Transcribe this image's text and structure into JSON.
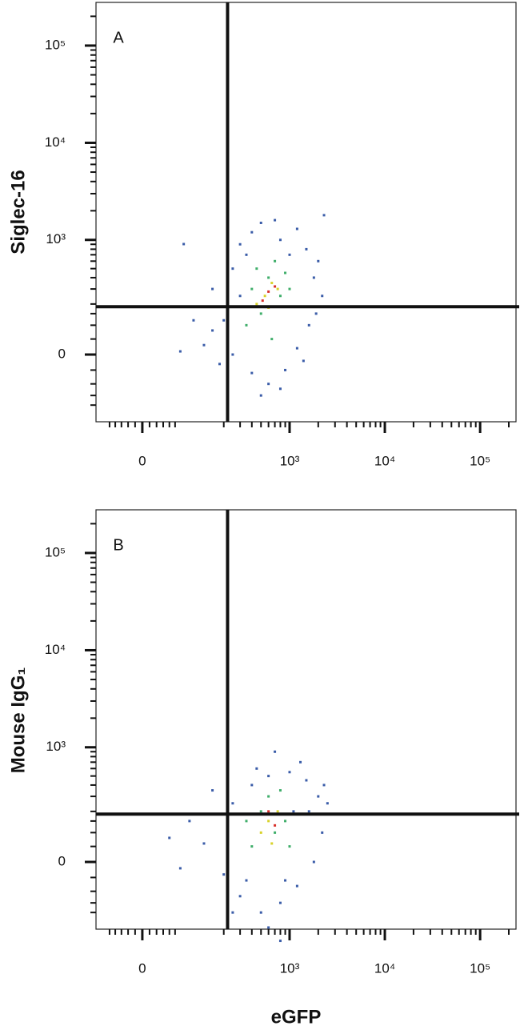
{
  "chart_data": [
    {
      "type": "scatter",
      "label": "A",
      "ylabel": "Siglec-16",
      "xlim": [
        -78,
        238000
      ],
      "ylim": [
        -313,
        278000
      ],
      "xticks": [
        0,
        {
          "value": 1000,
          "label": "10³"
        },
        {
          "value": 10000,
          "label": "10⁴"
        },
        {
          "value": 100000,
          "label": "10⁵"
        }
      ],
      "yticks": [
        0,
        {
          "value": 1000,
          "label": "10³"
        },
        {
          "value": 10000,
          "label": "10⁴"
        },
        {
          "value": 100000,
          "label": "10⁵"
        }
      ],
      "minor_xticks": [
        -50,
        -40,
        -30,
        -20,
        -10,
        10,
        20,
        30,
        40,
        50,
        200,
        300,
        400,
        500,
        600,
        700,
        800,
        900,
        2000,
        3000,
        4000,
        5000,
        6000,
        7000,
        8000,
        9000,
        20000,
        30000,
        40000,
        50000,
        60000,
        70000,
        80000,
        90000,
        200000
      ],
      "minor_yticks": [
        -200,
        -150,
        -100,
        -50,
        50,
        100,
        150,
        200,
        300,
        400,
        500,
        600,
        700,
        800,
        900,
        2000,
        3000,
        4000,
        5000,
        6000,
        7000,
        8000,
        9000,
        20000,
        30000,
        40000,
        50000,
        60000,
        70000,
        80000,
        90000,
        200000
      ],
      "gates": {
        "x": 220,
        "y": 185
      },
      "series": [
        {
          "color": "#3a5ca8",
          "x": [
            150,
            200,
            250,
            300,
            400,
            500,
            800,
            1200,
            1500,
            2000,
            1800,
            2200,
            1600,
            1200,
            900,
            600,
            400,
            250,
            150,
            120,
            700,
            1000,
            350,
            2300,
            180,
            500,
            800,
            1400,
            1900,
            300,
            90,
            60,
            67
          ],
          "y": [
            300,
            120,
            500,
            900,
            1200,
            1500,
            1000,
            1300,
            800,
            600,
            400,
            250,
            100,
            20,
            -50,
            -100,
            -60,
            0,
            80,
            30,
            1600,
            700,
            700,
            1800,
            -30,
            -150,
            -120,
            -20,
            150,
            250,
            120,
            10,
            905
          ]
        },
        {
          "color": "#3fae6a",
          "x": [
            400,
            600,
            500,
            800,
            700,
            1000,
            350,
            900,
            450,
            650
          ],
          "y": [
            300,
            400,
            150,
            250,
            600,
            300,
            100,
            450,
            500,
            50
          ]
        },
        {
          "color": "#d8d22a",
          "x": [
            550,
            650,
            450,
            750,
            600
          ],
          "y": [
            250,
            350,
            200,
            300,
            180
          ]
        },
        {
          "color": "#d8302a",
          "x": [
            600,
            520,
            700
          ],
          "y": [
            280,
            220,
            320
          ]
        }
      ]
    },
    {
      "type": "scatter",
      "label": "B",
      "ylabel": "Mouse IgG₁",
      "xlabel": "eGFP",
      "xlim": [
        -78,
        238000
      ],
      "ylim": [
        -313,
        278000
      ],
      "xticks": [
        0,
        {
          "value": 1000,
          "label": "10³"
        },
        {
          "value": 10000,
          "label": "10⁴"
        },
        {
          "value": 100000,
          "label": "10⁵"
        }
      ],
      "yticks": [
        0,
        {
          "value": 1000,
          "label": "10³"
        },
        {
          "value": 10000,
          "label": "10⁴"
        },
        {
          "value": 100000,
          "label": "10⁵"
        }
      ],
      "minor_xticks": [
        -50,
        -40,
        -30,
        -20,
        -10,
        10,
        20,
        30,
        40,
        50,
        200,
        300,
        400,
        500,
        600,
        700,
        800,
        900,
        2000,
        3000,
        4000,
        5000,
        6000,
        7000,
        8000,
        9000,
        20000,
        30000,
        40000,
        50000,
        60000,
        70000,
        80000,
        90000,
        200000
      ],
      "minor_yticks": [
        -200,
        -150,
        -100,
        -50,
        50,
        100,
        150,
        200,
        300,
        400,
        500,
        600,
        700,
        800,
        900,
        2000,
        3000,
        4000,
        5000,
        6000,
        7000,
        8000,
        9000,
        20000,
        30000,
        40000,
        50000,
        60000,
        70000,
        80000,
        90000,
        200000
      ],
      "gates": {
        "x": 220,
        "y": 185
      },
      "series": [
        {
          "color": "#3a5ca8",
          "x": [
            80,
            120,
            200,
            300,
            500,
            800,
            1200,
            1800,
            2200,
            2000,
            1500,
            1000,
            600,
            400,
            250,
            150,
            700,
            1300,
            2500,
            900,
            350,
            600,
            40,
            1600,
            450,
            1100,
            2300,
            60,
            800,
            250
          ],
          "y": [
            150,
            60,
            -40,
            -120,
            -200,
            -150,
            -80,
            0,
            100,
            300,
            450,
            550,
            500,
            400,
            250,
            350,
            900,
            700,
            250,
            -60,
            -60,
            -300,
            80,
            200,
            600,
            200,
            400,
            -20,
            -420,
            -200
          ]
        },
        {
          "color": "#3fae6a",
          "x": [
            500,
            700,
            400,
            900,
            600,
            1000,
            350,
            800
          ],
          "y": [
            200,
            100,
            50,
            150,
            300,
            50,
            150,
            350
          ]
        },
        {
          "color": "#d8d22a",
          "x": [
            600,
            750,
            500,
            650
          ],
          "y": [
            150,
            200,
            100,
            60
          ]
        },
        {
          "color": "#d8302a",
          "x": [
            700,
            600
          ],
          "y": [
            130,
            200
          ]
        }
      ]
    }
  ]
}
